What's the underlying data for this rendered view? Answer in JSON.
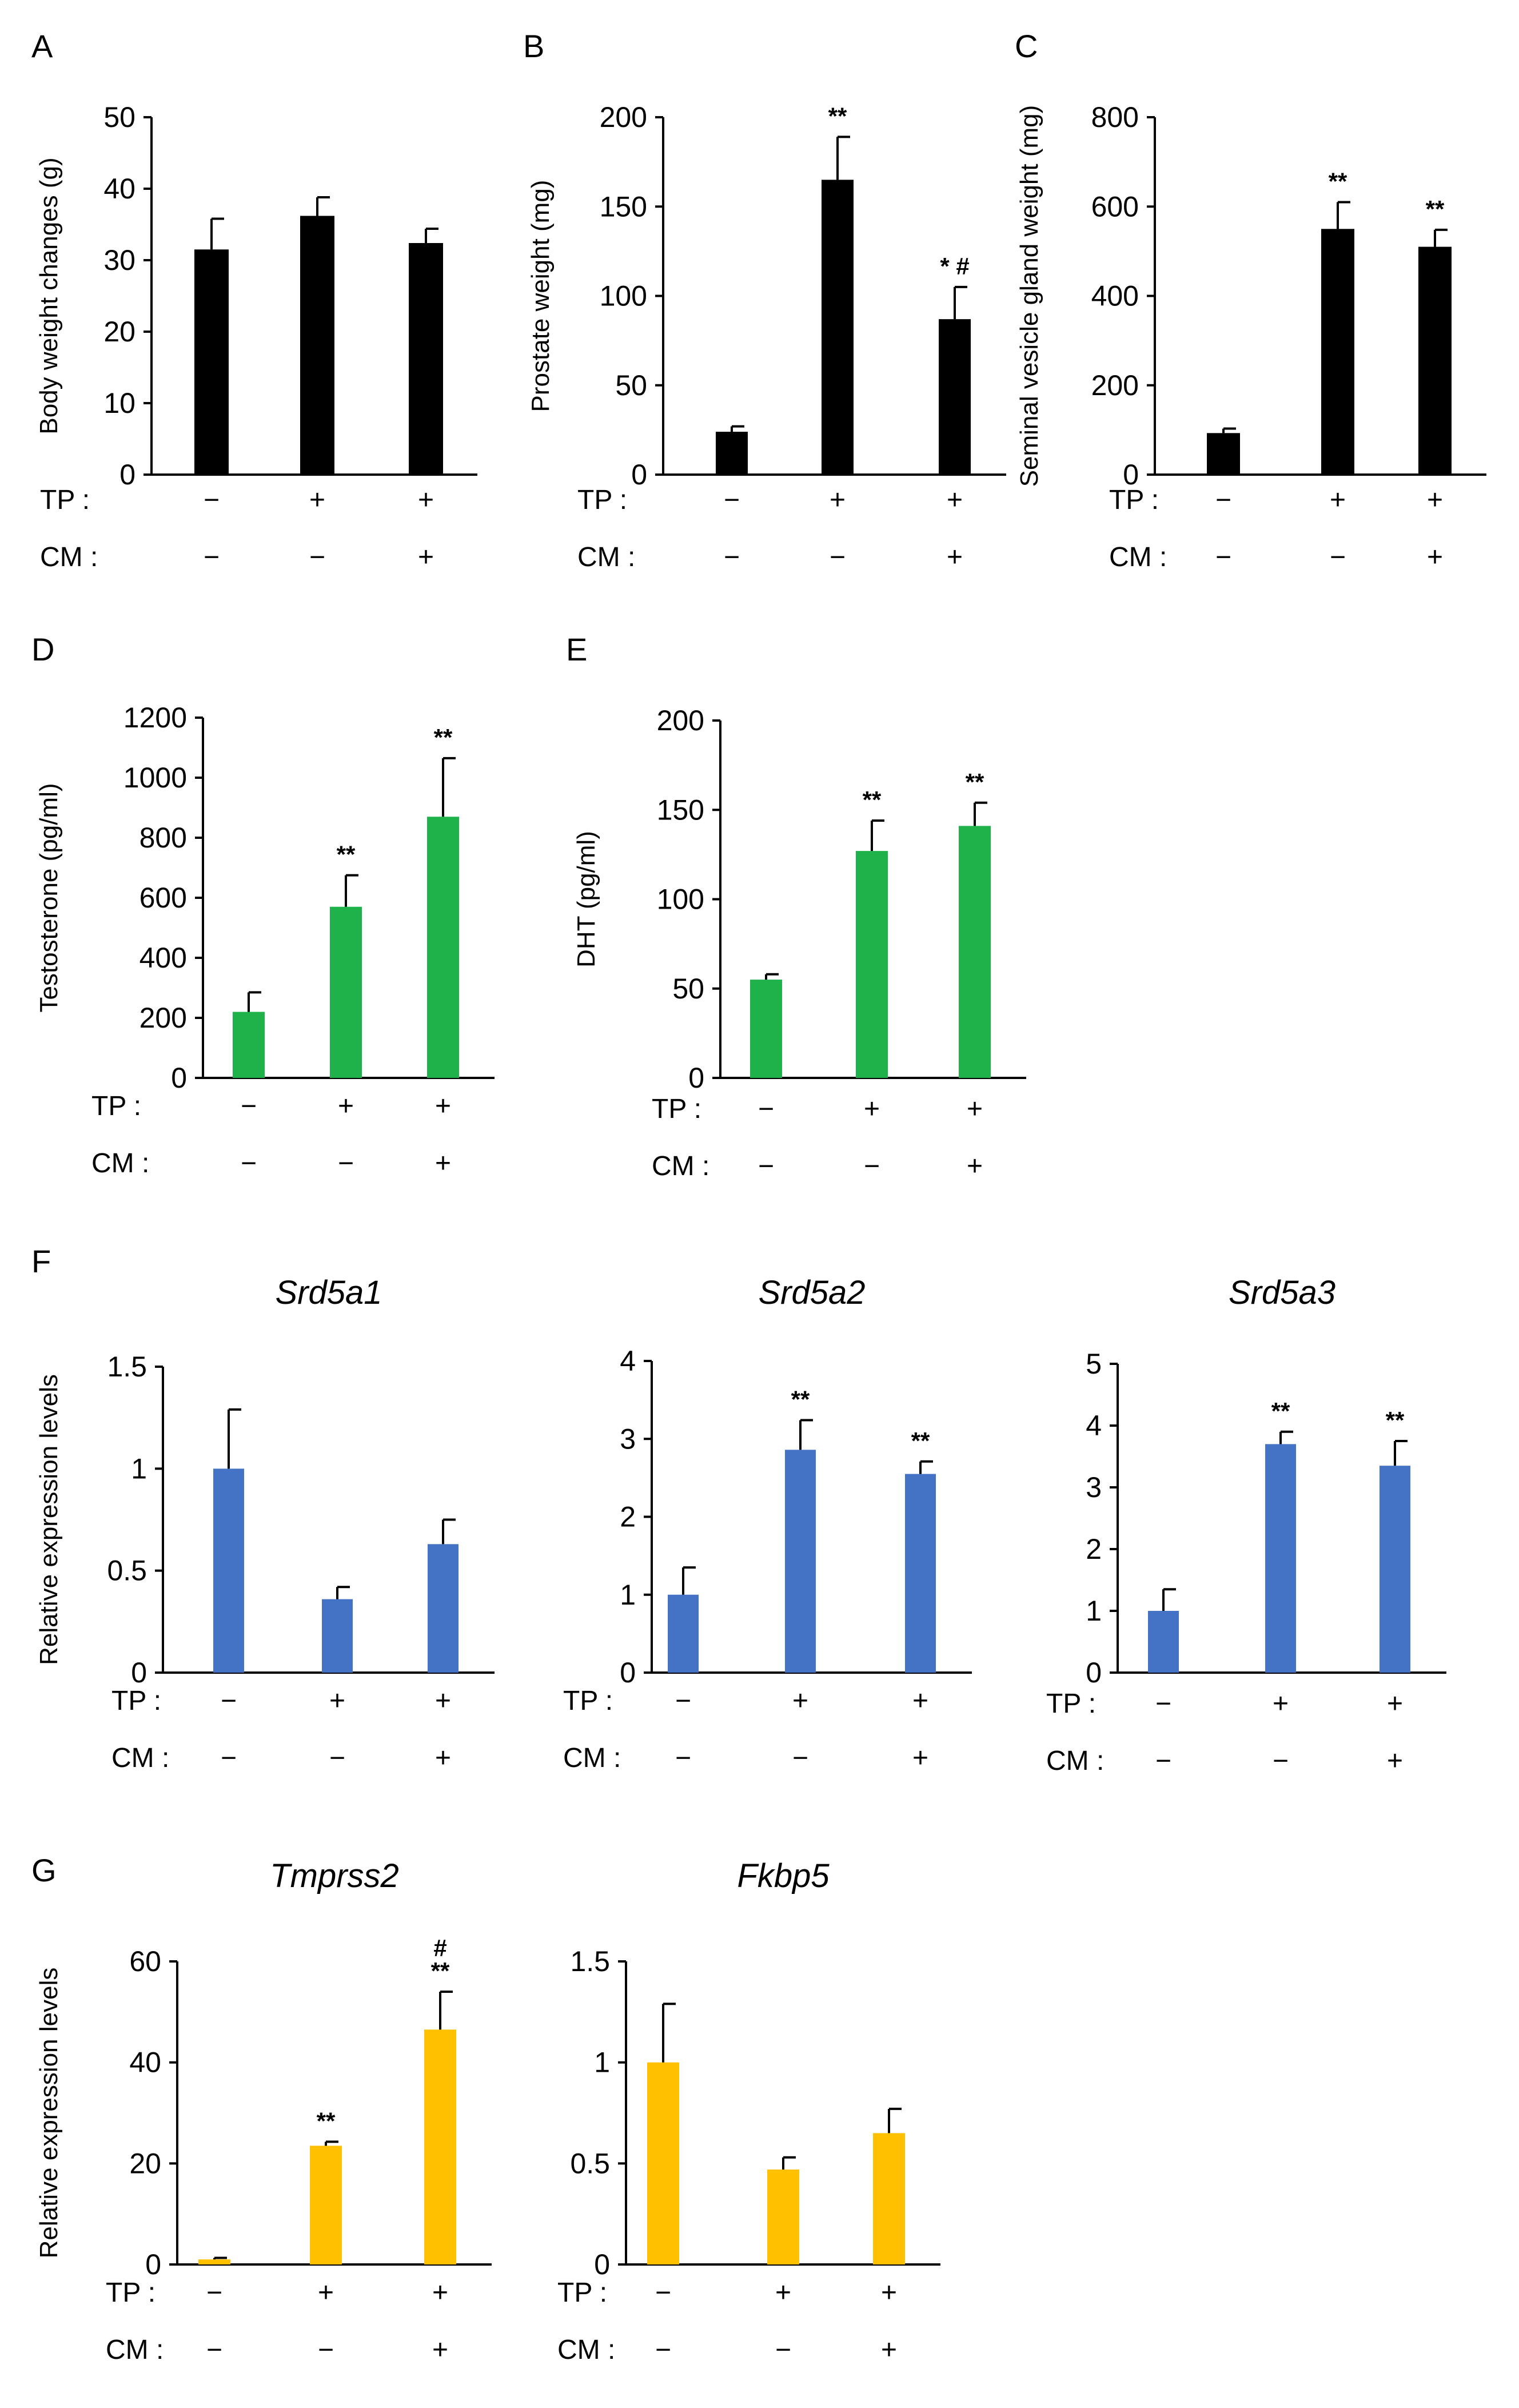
{
  "colors": {
    "black": "#000000",
    "green": "#1fb24a",
    "blue": "#4472c4",
    "yellow": "#ffc000"
  },
  "groups": {
    "row_labels": [
      "TP :",
      "CM :"
    ],
    "tp": [
      "−",
      "+",
      "+"
    ],
    "cm": [
      "−",
      "−",
      "+"
    ]
  },
  "panel_letters": [
    "A",
    "B",
    "C",
    "D",
    "E",
    "F",
    "G"
  ],
  "chart_data": [
    {
      "id": "A",
      "type": "bar",
      "color": "black",
      "title": "",
      "ylabel": "Body weight changes (g)",
      "ylim": [
        0,
        50
      ],
      "yticks": [
        "0",
        "10",
        "20",
        "30",
        "40",
        "50"
      ],
      "values": [
        31.5,
        36.2,
        32.4
      ],
      "errors": [
        4.3,
        2.6,
        2.0
      ],
      "sig": [
        "",
        "",
        ""
      ]
    },
    {
      "id": "B",
      "type": "bar",
      "color": "black",
      "title": "",
      "ylabel": "Prostate weight (mg)",
      "ylim": [
        0,
        200
      ],
      "yticks": [
        "0",
        "50",
        "100",
        "150",
        "200"
      ],
      "values": [
        24,
        165,
        87
      ],
      "errors": [
        3,
        24,
        18
      ],
      "sig": [
        "",
        "**",
        "* #"
      ]
    },
    {
      "id": "C",
      "type": "bar",
      "color": "black",
      "title": "",
      "ylabel": "Seminal vesicle gland weight (mg)",
      "ylim": [
        0,
        800
      ],
      "yticks": [
        "0",
        "200",
        "400",
        "600",
        "800"
      ],
      "values": [
        93,
        550,
        510
      ],
      "errors": [
        10,
        60,
        38
      ],
      "sig": [
        "",
        "**",
        "**"
      ]
    },
    {
      "id": "D",
      "type": "bar",
      "color": "green",
      "title": "",
      "ylabel": "Testosterone (pg/ml)",
      "ylim": [
        0,
        1200
      ],
      "yticks": [
        "0",
        "200",
        "400",
        "600",
        "800",
        "1000",
        "1200"
      ],
      "values": [
        220,
        570,
        870
      ],
      "errors": [
        65,
        105,
        195
      ],
      "sig": [
        "",
        "**",
        "**"
      ]
    },
    {
      "id": "E",
      "type": "bar",
      "color": "green",
      "title": "",
      "ylabel": "DHT (pg/ml)",
      "ylim": [
        0,
        200
      ],
      "yticks": [
        "0",
        "50",
        "100",
        "150",
        "200"
      ],
      "values": [
        55,
        127,
        141
      ],
      "errors": [
        3,
        17,
        13
      ],
      "sig": [
        "",
        "**",
        "**"
      ]
    },
    {
      "id": "F1",
      "type": "bar",
      "color": "blue",
      "title": "Srd5a1",
      "ylabel": "Relative expression levels",
      "ylim": [
        0,
        1.5
      ],
      "yticks": [
        "0",
        "0.5",
        "1",
        "1.5"
      ],
      "values": [
        1.0,
        0.36,
        0.63
      ],
      "errors": [
        0.29,
        0.06,
        0.12
      ],
      "sig": [
        "",
        "",
        ""
      ]
    },
    {
      "id": "F2",
      "type": "bar",
      "color": "blue",
      "title": "Srd5a2",
      "ylabel": "",
      "ylim": [
        0,
        4
      ],
      "yticks": [
        "0",
        "1",
        "2",
        "3",
        "4"
      ],
      "values": [
        1.0,
        2.86,
        2.55
      ],
      "errors": [
        0.35,
        0.38,
        0.16
      ],
      "sig": [
        "",
        "**",
        "**"
      ]
    },
    {
      "id": "F3",
      "type": "bar",
      "color": "blue",
      "title": "Srd5a3",
      "ylabel": "",
      "ylim": [
        0,
        5
      ],
      "yticks": [
        "0",
        "1",
        "2",
        "3",
        "4",
        "5"
      ],
      "values": [
        1.0,
        3.7,
        3.35
      ],
      "errors": [
        0.35,
        0.2,
        0.4
      ],
      "sig": [
        "",
        "**",
        "**"
      ]
    },
    {
      "id": "G1",
      "type": "bar",
      "color": "yellow",
      "title": "Tmprss2",
      "ylabel": "Relative expression levels",
      "ylim": [
        0,
        60
      ],
      "yticks": [
        "0",
        "20",
        "40",
        "60"
      ],
      "values": [
        1.0,
        23.5,
        46.5
      ],
      "errors": [
        0.3,
        0.8,
        7.5
      ],
      "sig": [
        "",
        "**",
        "#\n**"
      ]
    },
    {
      "id": "G2",
      "type": "bar",
      "color": "yellow",
      "title": "Fkbp5",
      "ylabel": "",
      "ylim": [
        0,
        1.5
      ],
      "yticks": [
        "0",
        "0.5",
        "1",
        "1.5"
      ],
      "values": [
        1.0,
        0.47,
        0.65
      ],
      "errors": [
        0.29,
        0.06,
        0.12
      ],
      "sig": [
        "",
        "",
        ""
      ]
    }
  ]
}
